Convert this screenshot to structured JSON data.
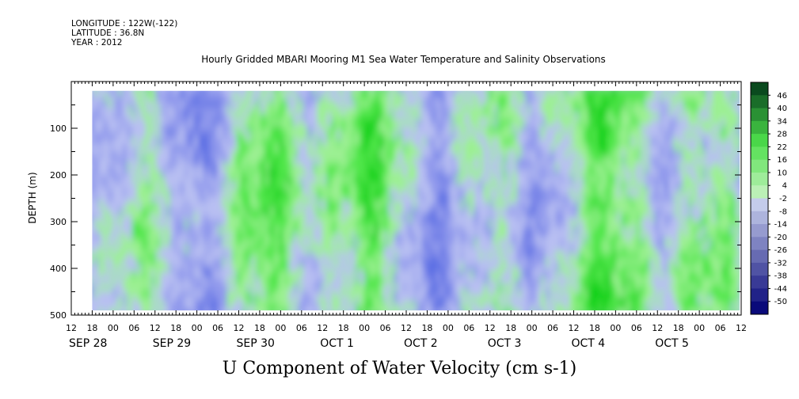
{
  "header": {
    "longitude": "LONGITUDE : 122W(-122)",
    "latitude": "LATITUDE : 36.8N",
    "year": "YEAR : 2012"
  },
  "chart_data": {
    "type": "heatmap",
    "title": "Hourly Gridded MBARI Mooring M1 Sea Water Temperature and Salinity Observations",
    "xlabel": "U Component of Water Velocity (cm s-1)",
    "ylabel": "DEPTH (m)",
    "ylim": [
      500,
      0
    ],
    "y_ticks": [
      100,
      200,
      300,
      400,
      500
    ],
    "x_range_hours": [
      "SEP 28 12:00",
      "OCT 5 12:00"
    ],
    "x_hour_tick_labels": [
      "12",
      "18",
      "00",
      "06",
      "12",
      "18",
      "00",
      "06",
      "12",
      "18",
      "00",
      "06",
      "12",
      "18",
      "00",
      "06",
      "12",
      "18",
      "00",
      "06",
      "12",
      "18",
      "00",
      "06",
      "12",
      "18",
      "00",
      "06",
      "12",
      "18",
      "00",
      "06",
      "12"
    ],
    "x_day_labels": [
      "SEP 28",
      "SEP 29",
      "SEP 30",
      "OCT 1",
      "OCT 2",
      "OCT 3",
      "OCT 4",
      "OCT 5"
    ],
    "colorbar": {
      "labels": [
        "46",
        "40",
        "34",
        "28",
        "22",
        "16",
        "10",
        "4",
        "-2",
        "-8",
        "-14",
        "-20",
        "-26",
        "-32",
        "-38",
        "-44",
        "-50"
      ],
      "range": [
        -50,
        52
      ],
      "low_color": "#0a0a7a",
      "mid_color": "#d0d8f2",
      "high_color": "#0a4a1e"
    },
    "data_extent_depth": [
      20,
      490
    ]
  },
  "colors": {
    "green_strong": "#18d21c",
    "green_mid": "#4fe64a",
    "green_light": "#9cf093",
    "blue_light": "#b8bff2",
    "blue_mid": "#8f98ec",
    "blue_dark": "#5d6fe4"
  }
}
